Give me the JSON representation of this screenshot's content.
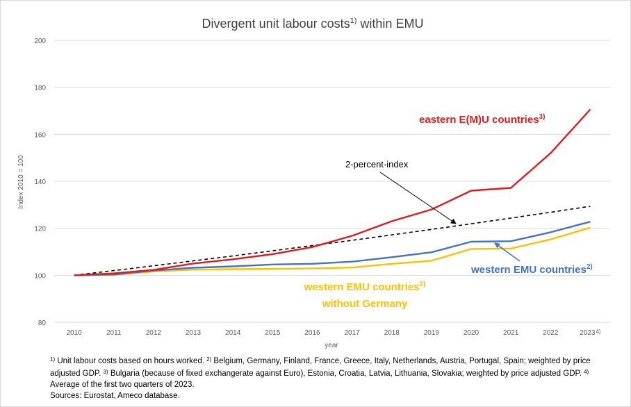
{
  "chart_data": {
    "type": "line",
    "title": "Divergent unit labour costs",
    "title_note": "1)",
    "title_suffix": " within EMU",
    "xlabel": "year",
    "ylabel": "Index 2010 = 100",
    "ylim": [
      80,
      200
    ],
    "yticks": [
      80,
      100,
      120,
      140,
      160,
      180,
      200
    ],
    "grid": true,
    "categories": [
      "2010",
      "2011",
      "2012",
      "2013",
      "2014",
      "2015",
      "2016",
      "2017",
      "2018",
      "2019",
      "2020",
      "2021",
      "2022",
      "2023"
    ],
    "last_category_note": "4)",
    "series": [
      {
        "name": "eastern E(M)U countries",
        "note": "3)",
        "color": "#e31a1c",
        "style": "solid",
        "values": [
          100,
          100.8,
          102.3,
          105.0,
          106.8,
          109.0,
          112.0,
          116.8,
          123.0,
          128.0,
          136.0,
          137.2,
          152.0,
          170.6
        ]
      },
      {
        "name": "2-percent-index",
        "note": "",
        "color": "#000000",
        "style": "dashed",
        "values": [
          100,
          102,
          104.04,
          106.12,
          108.24,
          110.41,
          112.62,
          114.87,
          117.17,
          119.51,
          121.9,
          124.34,
          126.82,
          129.36
        ]
      },
      {
        "name": "western EMU countries",
        "note": "2)",
        "color": "#4472c4",
        "style": "solid",
        "values": [
          100,
          100.3,
          102.0,
          103.2,
          103.8,
          104.6,
          104.9,
          105.8,
          107.7,
          109.8,
          114.3,
          114.5,
          118.3,
          122.8
        ]
      },
      {
        "name": "western EMU countries",
        "name_line2": "without Germany",
        "note": "2)",
        "color": "#ffc000",
        "style": "solid",
        "values": [
          100,
          100.2,
          101.6,
          102.4,
          102.6,
          102.7,
          102.9,
          103.3,
          104.9,
          106.2,
          111.2,
          111.4,
          115.3,
          120.3
        ]
      }
    ]
  },
  "footnote": {
    "note1_mark": "1)",
    "note1_text": " Unit labour costs based on hours worked. ",
    "note2_mark": "2)",
    "note2_text": " Belgium, Germany, Finland, France, Greece, Italy, Netherlands, Austria, Portugal, Spain; weighted by price adjusted GDP. ",
    "note3_mark": "3)",
    "note3_text": " Bulgaria (because of fixed exchangerate against Euro), Estonia, Croatia, Latvia, Lithuania, Slovakia; weighted by price adjusted GDP. ",
    "note4_mark": "4)",
    "note4_text": " Average of the first two quarters of 2023.",
    "sources": "Sources: Eurostat, Ameco database."
  }
}
